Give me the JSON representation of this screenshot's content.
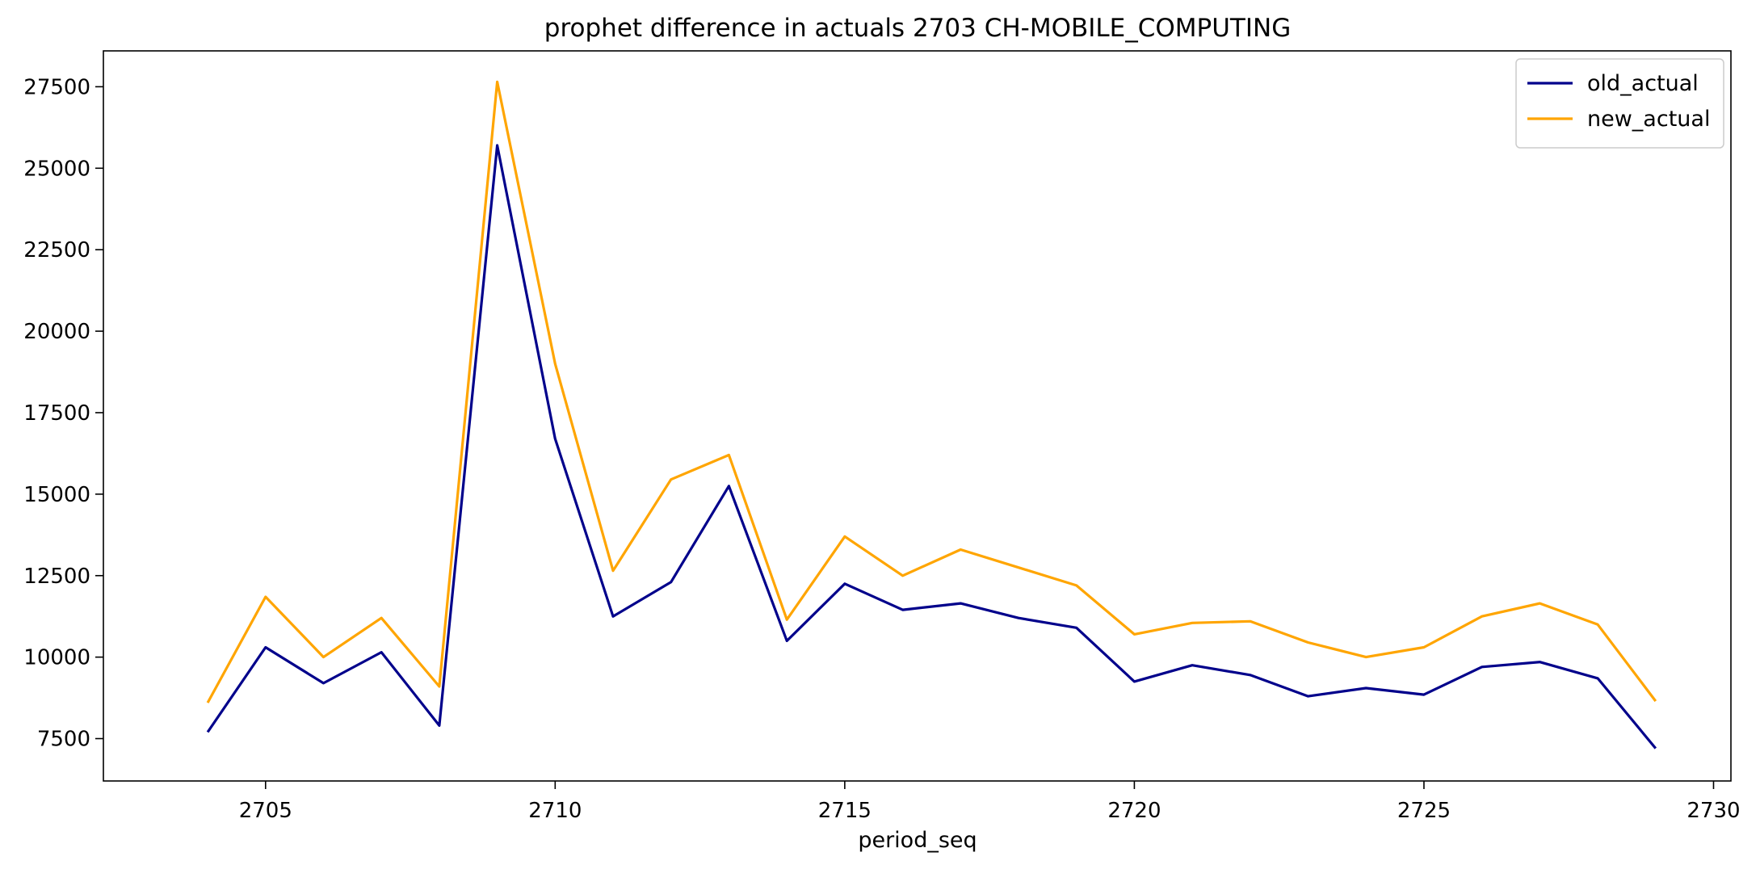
{
  "chart_data": {
    "type": "line",
    "title": "prophet difference in actuals 2703 CH-MOBILE_COMPUTING",
    "xlabel": "period_seq",
    "ylabel": "",
    "xlim": [
      2702.2,
      2730.3
    ],
    "ylim": [
      6200,
      28600
    ],
    "xticks": [
      2705,
      2710,
      2715,
      2720,
      2725,
      2730
    ],
    "yticks": [
      7500,
      10000,
      12500,
      15000,
      17500,
      20000,
      22500,
      25000,
      27500
    ],
    "grid": false,
    "legend_position": "top-right",
    "x": [
      2704,
      2705,
      2706,
      2707,
      2708,
      2709,
      2710,
      2711,
      2712,
      2713,
      2714,
      2715,
      2716,
      2717,
      2718,
      2719,
      2720,
      2721,
      2722,
      2723,
      2724,
      2725,
      2726,
      2727,
      2728,
      2729
    ],
    "series": [
      {
        "name": "old_actual",
        "color": "#00008b",
        "values": [
          7700,
          10300,
          9200,
          10150,
          7900,
          25700,
          16700,
          11250,
          12300,
          15250,
          10500,
          12250,
          11450,
          11650,
          11200,
          10900,
          9250,
          9750,
          9450,
          8800,
          9050,
          8850,
          9700,
          9850,
          9350,
          7200
        ]
      },
      {
        "name": "new_actual",
        "color": "#ffa500",
        "values": [
          8600,
          11850,
          10000,
          11200,
          9100,
          27650,
          19000,
          12650,
          15450,
          16200,
          11150,
          13700,
          12500,
          13300,
          12750,
          12200,
          10700,
          11050,
          11100,
          10450,
          10000,
          10300,
          11250,
          11650,
          11000,
          8650
        ]
      }
    ]
  }
}
